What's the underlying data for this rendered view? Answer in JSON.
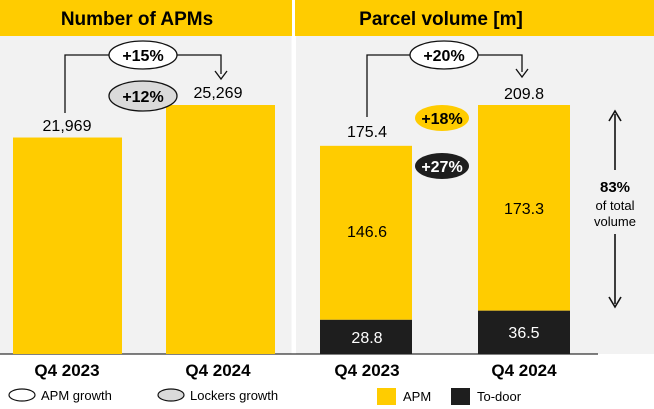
{
  "colors": {
    "apm": "#FFCC00",
    "to_door": "#1E1E1E",
    "panel_bg": "#F2F2F2",
    "header_bg": "#FFCC00",
    "lockers_pill": "#DADADA"
  },
  "chart_data": [
    {
      "type": "bar",
      "title": "Number of APMs",
      "categories": [
        "Q4 2023",
        "Q4 2024"
      ],
      "values": [
        21969,
        25269
      ],
      "value_labels": [
        "21,969",
        "25,269"
      ],
      "annotations": {
        "apm_growth": "+15%",
        "lockers_growth": "+12%"
      }
    },
    {
      "type": "bar",
      "stacked": true,
      "title": "Parcel volume [m]",
      "categories": [
        "Q4 2023",
        "Q4 2024"
      ],
      "series": [
        {
          "name": "To-door",
          "values": [
            28.8,
            36.5
          ],
          "value_labels": [
            "28.8",
            "36.5"
          ]
        },
        {
          "name": "APM",
          "values": [
            146.6,
            173.3
          ],
          "value_labels": [
            "146.6",
            "173.3"
          ]
        }
      ],
      "totals": [
        175.4,
        209.8
      ],
      "total_labels": [
        "175.4",
        "209.8"
      ],
      "annotations": {
        "total_growth": "+20%",
        "apm_growth": "+18%",
        "to_door_growth": "+27%",
        "share_value": "83%",
        "share_text_line1": "of total",
        "share_text_line2": "volume"
      }
    }
  ],
  "legend": {
    "apm_growth_label": "APM growth",
    "lockers_growth_label": "Lockers growth",
    "apm_label": "APM",
    "to_door_label": "To-door"
  }
}
